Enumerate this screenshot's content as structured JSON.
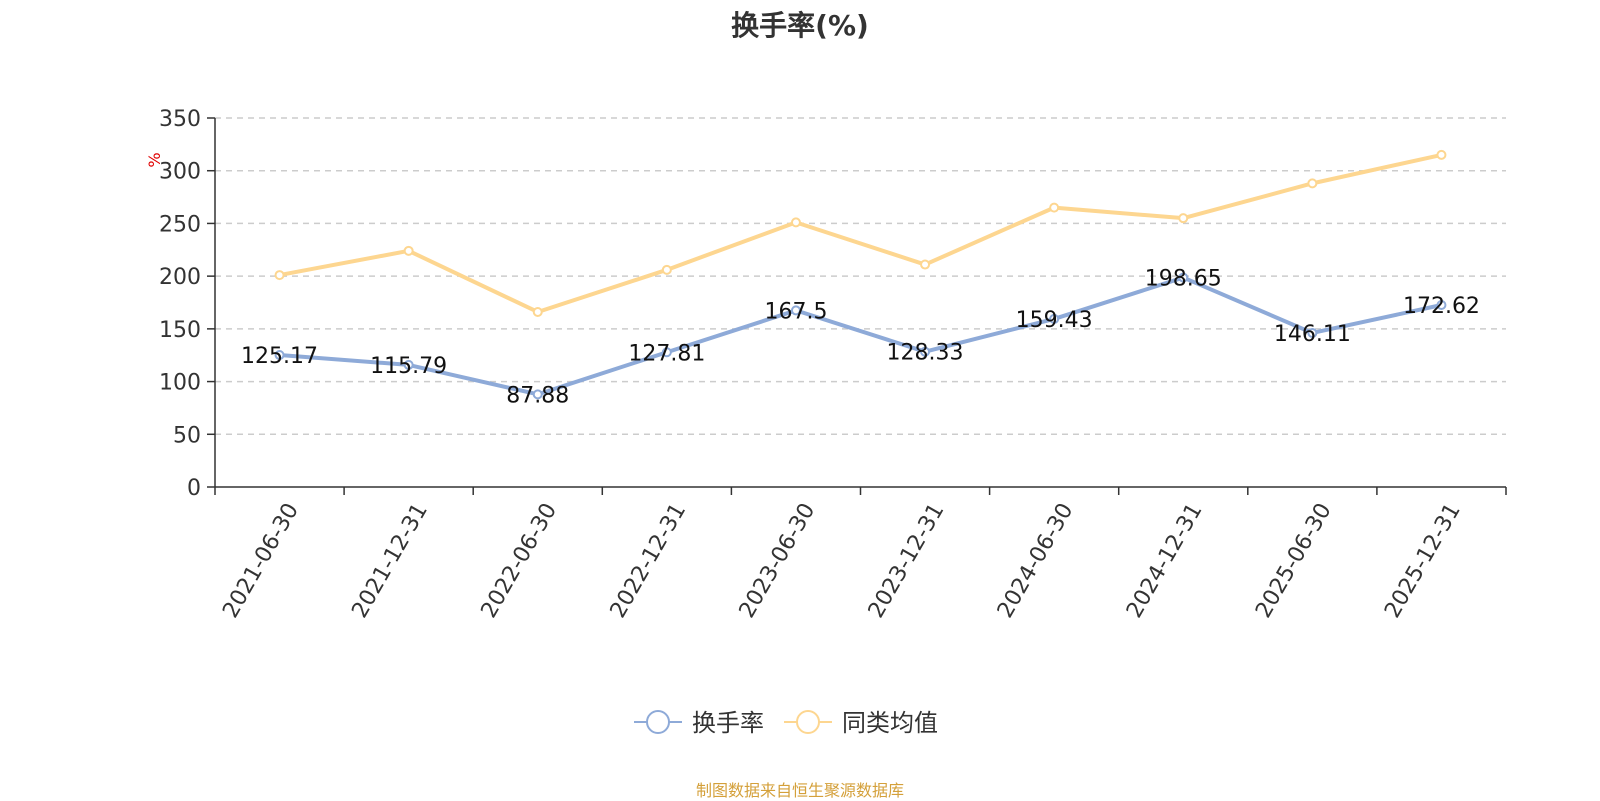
{
  "chart_data": {
    "type": "line",
    "title": "换手率(%)",
    "ylabel": "%",
    "xlabel": "",
    "ylim": [
      0,
      350
    ],
    "yticks": [
      0,
      50,
      100,
      150,
      200,
      250,
      300,
      350
    ],
    "categories": [
      "2021-06-30",
      "2021-12-31",
      "2022-06-30",
      "2022-12-31",
      "2023-06-30",
      "2023-12-31",
      "2024-06-30",
      "2024-12-31",
      "2025-06-30",
      "2025-12-31"
    ],
    "series": [
      {
        "name": "换手率",
        "color": "#8eaad8",
        "show_labels": true,
        "values": [
          125.17,
          115.79,
          87.88,
          127.81,
          167.5,
          128.33,
          159.43,
          198.65,
          146.11,
          172.62
        ],
        "labels": [
          "125.17",
          "115.79",
          "87.88",
          "127.81",
          "167.5",
          "128.33",
          "159.43",
          "198.65",
          "146.11",
          "172.62"
        ]
      },
      {
        "name": "同类均值",
        "color": "#fdd690",
        "show_labels": false,
        "values": [
          201,
          224,
          166,
          206,
          251,
          211,
          265,
          255,
          288,
          315
        ]
      }
    ],
    "grid": true,
    "legend_position": "bottom-center",
    "source": "制图数据来自恒生聚源数据库"
  }
}
